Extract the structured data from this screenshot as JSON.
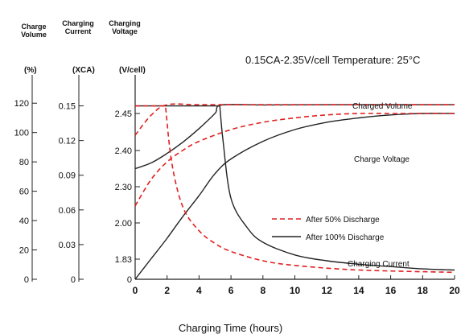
{
  "headers": {
    "charge_volume": [
      "Charge",
      "Volume"
    ],
    "charging_current": [
      "Charging",
      "Current"
    ],
    "charging_voltage": [
      "Charging",
      "Voltage"
    ]
  },
  "chart_data": {
    "type": "line",
    "title": "0.15CA-2.35V/cell   Temperature: 25°C",
    "xlabel": "Charging Time (hours)",
    "x_ticks": [
      "0",
      "2",
      "4",
      "6",
      "8",
      "10",
      "12",
      "14",
      "16",
      "18",
      "20"
    ],
    "xlim": [
      0,
      20
    ],
    "axes": {
      "volume": {
        "unit": "(%)",
        "ticks": [
          "0",
          "20",
          "40",
          "60",
          "80",
          "100",
          "120"
        ],
        "ylim": [
          0,
          130
        ]
      },
      "current": {
        "unit": "(XCA)",
        "ticks": [
          "0",
          "0.03",
          "0.06",
          "0.09",
          "0.12",
          "0.15"
        ],
        "ylim": [
          0,
          0.165
        ]
      },
      "voltage": {
        "unit": "(V/cell)",
        "ticks": [
          "0",
          "1.83",
          "2.00",
          "2.30",
          "2.40",
          "2.45"
        ]
      }
    },
    "curve_labels": {
      "volume": "Charged Volume",
      "voltage": "Charge Voltage",
      "current": "Charging Current"
    },
    "legend": [
      {
        "label": "After 50% Discharge",
        "style": "dashed",
        "color": "#e02020"
      },
      {
        "label": "After 100%  Discharge",
        "style": "solid",
        "color": "#222222"
      }
    ],
    "series": [
      {
        "group": "After 100% Discharge",
        "quantity": "Charged Volume",
        "x": [
          0,
          1,
          2,
          3,
          4,
          5,
          6,
          8,
          10,
          12,
          14,
          16,
          18,
          20
        ],
        "y_pct": [
          0,
          14,
          28,
          43,
          57,
          72,
          82,
          94,
          102,
          107,
          110,
          112,
          113,
          113
        ]
      },
      {
        "group": "After 100% Discharge",
        "quantity": "Charge Voltage",
        "x": [
          0,
          1,
          2,
          3,
          4,
          5,
          5.4,
          8,
          12,
          16,
          20
        ],
        "y_pos": [
          0.58,
          0.61,
          0.66,
          0.72,
          0.79,
          0.87,
          0.913,
          0.914,
          0.915,
          0.915,
          0.915
        ]
      },
      {
        "group": "After 100% Discharge",
        "quantity": "Charging Current",
        "x": [
          0,
          5.3,
          5.5,
          6,
          7,
          8,
          10,
          12,
          14,
          16,
          18,
          20
        ],
        "y_xca": [
          0.15,
          0.15,
          0.12,
          0.07,
          0.045,
          0.032,
          0.021,
          0.016,
          0.013,
          0.011,
          0.009,
          0.008
        ]
      },
      {
        "group": "After 50% Discharge",
        "quantity": "Charged Volume",
        "x": [
          0,
          1,
          2,
          3,
          4,
          6,
          8,
          10,
          12,
          14,
          16,
          18,
          20
        ],
        "y_pct": [
          50,
          68,
          80,
          88,
          94,
          102,
          107,
          110,
          112,
          113,
          113,
          113,
          113
        ]
      },
      {
        "group": "After 50% Discharge",
        "quantity": "Charge Voltage",
        "x": [
          0,
          1,
          2,
          4,
          8,
          12,
          16,
          20
        ],
        "y_pos": [
          0.755,
          0.86,
          0.915,
          0.915,
          0.915,
          0.915,
          0.915,
          0.915
        ]
      },
      {
        "group": "After 50% Discharge",
        "quantity": "Charging Current",
        "x": [
          0,
          1.9,
          2.3,
          3,
          4,
          5,
          6,
          8,
          10,
          14,
          20
        ],
        "y_xca": [
          0.15,
          0.15,
          0.1,
          0.062,
          0.042,
          0.031,
          0.024,
          0.016,
          0.012,
          0.008,
          0.006
        ]
      }
    ]
  }
}
